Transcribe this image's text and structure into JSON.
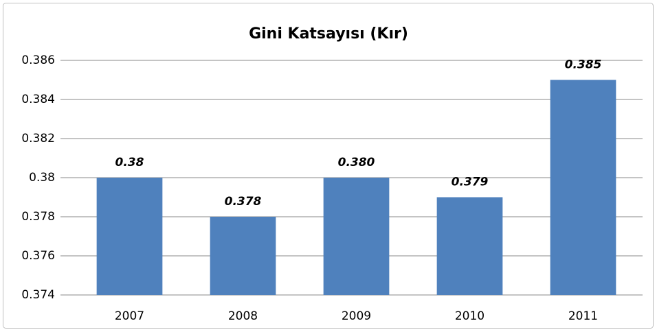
{
  "chart_data": {
    "type": "bar",
    "title": "Gini Katsayısı (Kır)",
    "categories": [
      "2007",
      "2008",
      "2009",
      "2010",
      "2011"
    ],
    "values": [
      0.38,
      0.378,
      0.38,
      0.379,
      0.385
    ],
    "value_labels": [
      "0.38",
      "0.378",
      "0.380",
      "0.379",
      "0.385"
    ],
    "color": "#4f81bd",
    "ylim": [
      0.374,
      0.386
    ],
    "yticks": [
      0.374,
      0.376,
      0.378,
      0.38,
      0.382,
      0.384,
      0.386
    ],
    "grid": true
  }
}
